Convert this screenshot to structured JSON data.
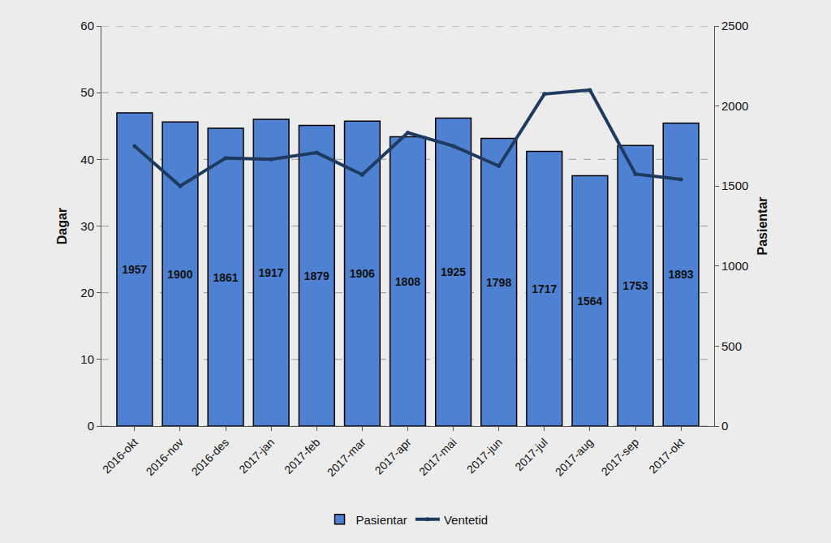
{
  "chart_data": {
    "type": "bar",
    "categories": [
      "2016-okt",
      "2016-nov",
      "2016-des",
      "2017-jan",
      "2017-feb",
      "2017-mar",
      "2017-apr",
      "2017-mai",
      "2017-jun",
      "2017-jul",
      "2017-aug",
      "2017-sep",
      "2017-okt"
    ],
    "series": [
      {
        "name": "Pasientar",
        "type": "bar",
        "axis": "y2",
        "color": "#4f81d2",
        "values": [
          1957,
          1900,
          1861,
          1917,
          1879,
          1906,
          1808,
          1925,
          1798,
          1717,
          1564,
          1753,
          1893
        ],
        "data_labels": true
      },
      {
        "name": "Ventetid",
        "type": "line",
        "color": "#1f3a5f",
        "marker": "circle",
        "values": [
          42,
          36,
          40.2,
          40,
          41,
          37.7,
          44,
          42,
          39,
          49.8,
          50.4,
          37.8,
          37
        ]
      }
    ],
    "y_label": "Dagar",
    "y2_label": "Pasientar",
    "ylim": [
      0,
      60
    ],
    "yticks": [
      0,
      10,
      20,
      30,
      40,
      50,
      60
    ],
    "y2lim": [
      0,
      2500
    ],
    "y2ticks": [
      0,
      500,
      1000,
      1500,
      2000,
      2500
    ],
    "grid": true,
    "legend": "bottom"
  }
}
